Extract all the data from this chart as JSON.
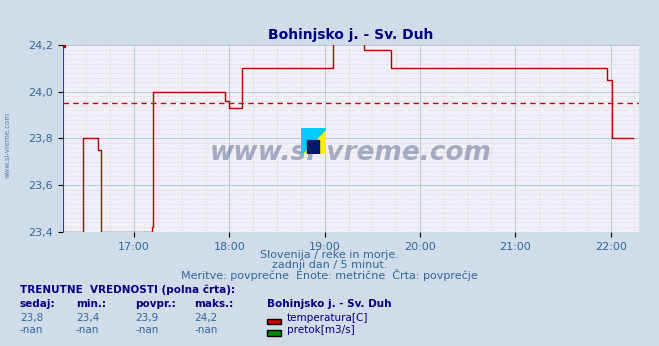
{
  "title": "Bohinjsko j. - Sv. Duh",
  "title_color": "#000080",
  "bg_color": "#d0dce8",
  "plot_bg_color": "#f0f0f8",
  "grid_major_color": "#b0c4d8",
  "grid_minor_color": "#e0b8c0",
  "line_color": "#aa0000",
  "avg_line_color": "#cc0000",
  "xaxis_line_color": "#3333cc",
  "yaxis_line_color": "#3333cc",
  "subtitle1": "Slovenija / reke in morje.",
  "subtitle2": "zadnji dan / 5 minut.",
  "subtitle3": "Meritve: povprečne  Enote: metrične  Črta: povprečje",
  "ylim": [
    23.4,
    24.2
  ],
  "yticks": [
    23.4,
    23.6,
    23.8,
    24.0,
    24.2
  ],
  "avg_value": 23.95,
  "watermark_text": "www.si-vreme.com",
  "watermark_color": "#1a3060",
  "watermark_alpha": 0.35,
  "bottom_bold_label": "TRENUTNE  VREDNOSTI (polna črta):",
  "col_headers": [
    "sedaj:",
    "min.:",
    "povpr.:",
    "maks.:"
  ],
  "col_values_temp": [
    "23,8",
    "23,4",
    "23,9",
    "24,2"
  ],
  "col_values_flow": [
    "-nan",
    "-nan",
    "-nan",
    "-nan"
  ],
  "station_name": "Bohinjsko j. - Sv. Duh",
  "legend_temp": "temperatura[C]",
  "legend_flow": "pretok[m3/s]",
  "temp_color": "#cc0000",
  "flow_color": "#008800",
  "xtick_labels": [
    "17:00",
    "18:00",
    "19:00",
    "20:00",
    "21:00",
    "22:00"
  ],
  "tick_color": "#336699",
  "left_watermark": "www.si-vreme.com"
}
